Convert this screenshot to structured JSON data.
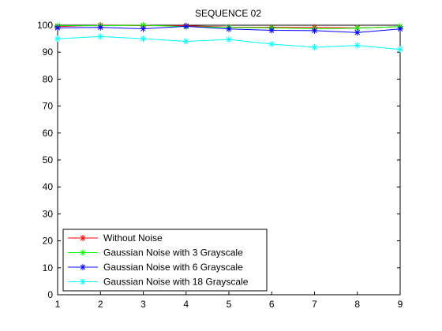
{
  "chart_data": {
    "type": "line",
    "title": "SEQUENCE 02",
    "xlabel": "",
    "ylabel": "",
    "x": [
      1,
      2,
      3,
      4,
      5,
      6,
      7,
      8,
      9
    ],
    "xlim": [
      1,
      9
    ],
    "ylim": [
      0,
      100
    ],
    "xticks": [
      "1",
      "2",
      "3",
      "4",
      "5",
      "6",
      "7",
      "8",
      "9"
    ],
    "yticks": [
      "0",
      "10",
      "20",
      "30",
      "40",
      "50",
      "60",
      "70",
      "80",
      "90",
      "100"
    ],
    "grid": false,
    "legend_position": "bottom-left",
    "marker": "asterisk",
    "series": [
      {
        "name": "Without Noise",
        "color": "#ff0000",
        "values": [
          99.5,
          100,
          99.8,
          99.8,
          99.3,
          99.2,
          99.2,
          99.0,
          99.4
        ]
      },
      {
        "name": "Gaussian Noise with 3 Grayscale",
        "color": "#00ff00",
        "values": [
          99.8,
          99.8,
          100,
          99.5,
          99.2,
          99.0,
          98.7,
          98.9,
          99.5
        ]
      },
      {
        "name": "Gaussian Noise with 6 Grayscale",
        "color": "#0000ff",
        "values": [
          99.0,
          99.2,
          98.7,
          99.6,
          98.6,
          98.1,
          98.0,
          97.3,
          98.6
        ]
      },
      {
        "name": "Gaussian Noise with 18 Grayscale",
        "color": "#00ffff",
        "values": [
          95.0,
          95.8,
          95.0,
          94.0,
          94.7,
          93.0,
          91.8,
          92.5,
          91.0
        ]
      }
    ]
  }
}
